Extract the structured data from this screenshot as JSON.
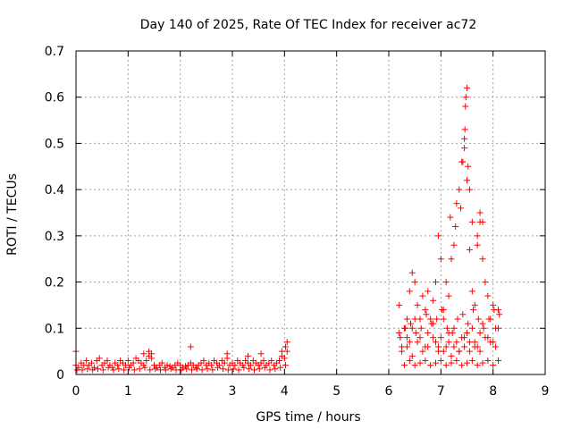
{
  "chart_data": {
    "type": "scatter",
    "title": "Day 140 of 2025, Rate Of TEC Index for receiver ac72",
    "xlabel": "GPS time / hours",
    "ylabel": "ROTI / TECUs",
    "xlim": [
      0,
      9
    ],
    "ylim": [
      0,
      0.7
    ],
    "xticks": [
      "0",
      "1",
      "2",
      "3",
      "4",
      "5",
      "6",
      "7",
      "8",
      "9"
    ],
    "yticks": [
      "0",
      "0.1",
      "0.2",
      "0.3",
      "0.4",
      "0.5",
      "0.6",
      "0.7"
    ],
    "grid": true,
    "marker": "+",
    "color": "#ff0000",
    "series": [
      {
        "x": [
          0.0,
          0.05,
          0.1,
          0.15,
          0.2,
          0.25,
          0.3,
          0.35,
          0.4,
          0.45,
          0.5,
          0.55,
          0.6,
          0.65,
          0.7,
          0.75,
          0.8,
          0.85,
          0.9,
          0.95,
          1.0,
          1.05,
          1.1,
          1.15,
          1.2,
          1.25,
          1.3,
          1.35,
          1.4,
          1.45,
          1.5,
          1.55,
          1.6,
          1.65,
          1.7,
          1.75,
          1.8,
          1.85,
          1.9,
          1.95,
          2.0,
          2.05,
          2.1,
          2.15,
          2.2,
          2.25,
          2.3,
          2.35,
          2.4,
          2.45,
          2.5,
          2.55,
          2.6,
          2.65,
          2.7,
          2.75,
          2.8,
          2.85,
          2.9,
          2.95,
          3.0,
          3.05,
          3.1,
          3.15,
          3.2,
          3.25,
          3.3,
          3.35,
          3.4,
          3.45,
          3.5,
          3.55,
          3.6,
          3.65,
          3.7,
          3.75,
          3.8,
          3.85,
          3.9,
          3.95,
          4.0,
          4.05,
          0.02,
          0.12,
          0.22,
          0.32,
          0.42,
          0.52,
          0.62,
          0.72,
          0.82,
          0.92,
          1.02,
          1.12,
          1.22,
          1.32,
          1.42,
          1.52,
          1.62,
          1.72,
          1.82,
          1.92,
          2.02,
          2.12,
          2.22,
          2.32,
          2.42,
          2.52,
          2.62,
          2.72,
          2.82,
          2.92,
          3.02,
          3.12,
          3.22,
          3.32,
          3.42,
          3.52,
          3.62,
          3.72,
          3.82,
          3.92,
          4.02,
          0.0,
          1.3,
          1.4,
          1.45,
          2.2,
          2.9,
          3.3,
          3.55,
          3.95,
          4.02,
          4.05,
          6.2,
          6.25,
          6.3,
          6.35,
          6.4,
          6.45,
          6.5,
          6.55,
          6.6,
          6.65,
          6.7,
          6.75,
          6.8,
          6.85,
          6.9,
          6.95,
          7.0,
          7.05,
          7.1,
          7.15,
          7.2,
          7.25,
          7.3,
          7.35,
          7.4,
          7.45,
          7.5,
          7.55,
          7.6,
          7.65,
          7.7,
          7.75,
          7.8,
          7.85,
          7.9,
          7.95,
          8.0,
          8.05,
          8.1,
          6.22,
          6.32,
          6.42,
          6.52,
          6.62,
          6.72,
          6.82,
          6.92,
          7.02,
          7.12,
          7.22,
          7.32,
          7.42,
          7.52,
          7.62,
          7.72,
          7.82,
          7.92,
          8.02,
          8.12,
          6.25,
          6.35,
          6.45,
          6.55,
          6.65,
          6.75,
          6.85,
          6.95,
          7.05,
          7.15,
          7.25,
          7.35,
          7.45,
          7.55,
          7.65,
          7.75,
          7.85,
          7.95,
          8.05,
          6.3,
          6.4,
          6.5,
          6.6,
          6.7,
          6.8,
          6.9,
          7.0,
          7.1,
          7.2,
          7.3,
          7.4,
          7.5,
          7.6,
          7.7,
          7.8,
          7.9,
          8.0,
          8.1,
          6.2,
          6.35,
          6.4,
          6.45,
          6.5,
          6.6,
          6.7,
          6.75,
          6.85,
          6.9,
          6.95,
          7.0,
          7.05,
          7.1,
          7.15,
          7.2,
          7.25,
          7.3,
          7.35,
          7.4,
          7.45,
          7.5,
          7.55,
          7.6,
          7.65,
          7.7,
          7.75,
          7.8,
          7.9,
          8.0,
          8.1,
          7.18,
          7.28,
          7.38,
          7.42,
          7.45,
          7.46,
          7.47,
          7.48,
          7.5,
          7.52,
          7.55,
          7.6,
          7.7,
          7.75,
          7.8
        ],
        "y": [
          0.02,
          0.015,
          0.025,
          0.02,
          0.03,
          0.02,
          0.025,
          0.015,
          0.03,
          0.035,
          0.02,
          0.025,
          0.03,
          0.02,
          0.015,
          0.025,
          0.02,
          0.03,
          0.025,
          0.02,
          0.03,
          0.02,
          0.025,
          0.035,
          0.03,
          0.025,
          0.02,
          0.03,
          0.04,
          0.035,
          0.02,
          0.015,
          0.02,
          0.025,
          0.015,
          0.02,
          0.018,
          0.015,
          0.02,
          0.025,
          0.02,
          0.015,
          0.018,
          0.02,
          0.025,
          0.02,
          0.015,
          0.02,
          0.025,
          0.03,
          0.02,
          0.025,
          0.02,
          0.03,
          0.025,
          0.02,
          0.03,
          0.025,
          0.035,
          0.02,
          0.025,
          0.02,
          0.03,
          0.025,
          0.02,
          0.03,
          0.025,
          0.02,
          0.03,
          0.025,
          0.02,
          0.025,
          0.03,
          0.02,
          0.025,
          0.03,
          0.02,
          0.025,
          0.03,
          0.04,
          0.035,
          0.05,
          0.01,
          0.01,
          0.012,
          0.01,
          0.012,
          0.01,
          0.015,
          0.01,
          0.012,
          0.01,
          0.015,
          0.01,
          0.012,
          0.015,
          0.01,
          0.012,
          0.01,
          0.01,
          0.012,
          0.01,
          0.01,
          0.012,
          0.01,
          0.012,
          0.01,
          0.012,
          0.01,
          0.015,
          0.012,
          0.01,
          0.012,
          0.01,
          0.015,
          0.012,
          0.01,
          0.012,
          0.015,
          0.01,
          0.012,
          0.015,
          0.02,
          0.05,
          0.045,
          0.05,
          0.045,
          0.06,
          0.045,
          0.04,
          0.045,
          0.05,
          0.06,
          0.07,
          0.15,
          0.06,
          0.1,
          0.12,
          0.18,
          0.22,
          0.2,
          0.15,
          0.12,
          0.17,
          0.14,
          0.18,
          0.12,
          0.16,
          0.2,
          0.3,
          0.25,
          0.14,
          0.2,
          0.17,
          0.25,
          0.28,
          0.37,
          0.4,
          0.46,
          0.49,
          0.42,
          0.27,
          0.18,
          0.15,
          0.28,
          0.35,
          0.25,
          0.2,
          0.17,
          0.12,
          0.15,
          0.1,
          0.14,
          0.08,
          0.1,
          0.11,
          0.09,
          0.1,
          0.13,
          0.11,
          0.12,
          0.14,
          0.1,
          0.09,
          0.12,
          0.13,
          0.11,
          0.14,
          0.12,
          0.1,
          0.12,
          0.14,
          0.13,
          0.05,
          0.06,
          0.04,
          0.07,
          0.05,
          0.06,
          0.08,
          0.06,
          0.05,
          0.07,
          0.06,
          0.05,
          0.08,
          0.07,
          0.06,
          0.05,
          0.08,
          0.07,
          0.06,
          0.02,
          0.03,
          0.02,
          0.025,
          0.03,
          0.02,
          0.025,
          0.03,
          0.02,
          0.025,
          0.03,
          0.02,
          0.025,
          0.03,
          0.02,
          0.025,
          0.03,
          0.02,
          0.03,
          0.09,
          0.08,
          0.07,
          0.1,
          0.12,
          0.08,
          0.06,
          0.09,
          0.11,
          0.07,
          0.05,
          0.08,
          0.12,
          0.06,
          0.09,
          0.04,
          0.1,
          0.07,
          0.05,
          0.08,
          0.06,
          0.09,
          0.05,
          0.1,
          0.07,
          0.06,
          0.09,
          0.11,
          0.08,
          0.07,
          0.1,
          0.34,
          0.32,
          0.36,
          0.46,
          0.51,
          0.53,
          0.58,
          0.6,
          0.62,
          0.45,
          0.4,
          0.33,
          0.3,
          0.33,
          0.33
        ]
      }
    ]
  }
}
